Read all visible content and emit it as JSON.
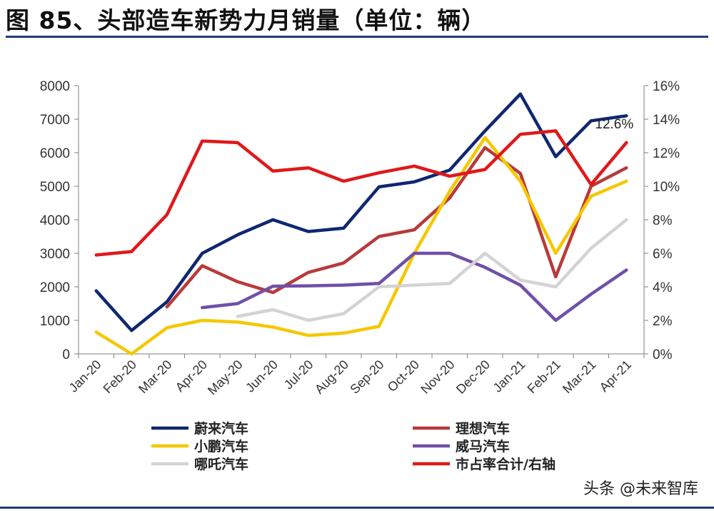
{
  "title": "图 85、头部造车新势力月销量（单位：辆）",
  "watermark": "头条 @未来智库",
  "chart_data": {
    "type": "line",
    "x": [
      "Jan-20",
      "Feb-20",
      "Mar-20",
      "Apr-20",
      "May-20",
      "Jun-20",
      "Jul-20",
      "Aug-20",
      "Sep-20",
      "Oct-20",
      "Nov-20",
      "Dec-20",
      "Jan-21",
      "Feb-21",
      "Mar-21",
      "Apr-21"
    ],
    "y_left": {
      "min": 0,
      "max": 8000,
      "ticks": [
        "0",
        "1000",
        "2000",
        "3000",
        "4000",
        "5000",
        "6000",
        "7000",
        "8000"
      ]
    },
    "y_right": {
      "min": 0,
      "max": 16,
      "ticks": [
        "0%",
        "2%",
        "4%",
        "6%",
        "8%",
        "10%",
        "12%",
        "14%",
        "16%"
      ]
    },
    "grid": false,
    "legend_position": "bottom",
    "series": [
      {
        "name": "蔚来汽车",
        "color": "#0e2870",
        "axis": "left",
        "values": [
          1880,
          700,
          1550,
          3000,
          3550,
          4000,
          3650,
          3750,
          4980,
          5130,
          5480,
          6650,
          7750,
          5880,
          6950,
          7100
        ]
      },
      {
        "name": "理想汽车",
        "color": "#b83a3a",
        "axis": "left",
        "values": [
          null,
          null,
          1400,
          2630,
          2150,
          1830,
          2430,
          2710,
          3500,
          3700,
          4650,
          6150,
          5380,
          2300,
          5000,
          5550
        ]
      },
      {
        "name": "小鹏汽车",
        "color": "#f5c800",
        "axis": "left",
        "values": [
          650,
          0,
          780,
          1000,
          950,
          800,
          550,
          620,
          820,
          3000,
          4850,
          6450,
          5150,
          3000,
          4700,
          5150
        ]
      },
      {
        "name": "威马汽车",
        "color": "#7050a8",
        "axis": "left",
        "values": [
          null,
          null,
          null,
          1380,
          1500,
          2020,
          2030,
          2050,
          2100,
          3000,
          3000,
          2580,
          2050,
          1000,
          1780,
          2500
        ]
      },
      {
        "name": "哪吒汽车",
        "color": "#d3d3d3",
        "axis": "left",
        "values": [
          null,
          null,
          null,
          null,
          1120,
          1320,
          1000,
          1200,
          2000,
          2050,
          2100,
          3000,
          2200,
          2000,
          3150,
          4000
        ]
      },
      {
        "name": "市占率合计/右轴",
        "color": "#e0181a",
        "axis": "right",
        "values": [
          5.9,
          6.1,
          8.3,
          12.7,
          12.6,
          10.9,
          11.1,
          10.3,
          10.8,
          11.2,
          10.6,
          11.0,
          13.1,
          13.3,
          10.1,
          12.6
        ]
      }
    ],
    "annotations": [
      {
        "text": "12.6%",
        "x": "Apr-21",
        "series": "市占率合计/右轴"
      }
    ]
  }
}
